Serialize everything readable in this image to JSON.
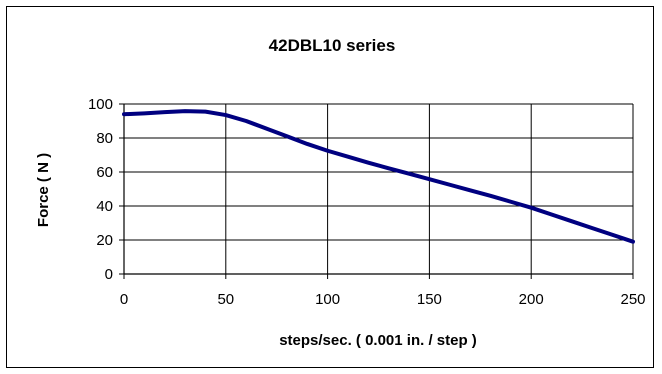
{
  "chart_data": {
    "type": "line",
    "title": "42DBL10 series",
    "xlabel": "steps/sec. ( 0.001 in. / step )",
    "ylabel": "Force ( N )",
    "xlim": [
      0,
      250
    ],
    "ylim": [
      0,
      100
    ],
    "x_ticks": [
      "0",
      "50",
      "100",
      "150",
      "200",
      "250"
    ],
    "y_ticks": [
      "0",
      "20",
      "40",
      "60",
      "80",
      "100"
    ],
    "grid": true,
    "legend": "none",
    "series": [
      {
        "color": "#000080",
        "x": [
          0,
          10,
          20,
          30,
          40,
          50,
          60,
          70,
          80,
          90,
          100,
          110,
          120,
          130,
          140,
          150,
          160,
          170,
          180,
          190,
          200,
          210,
          220,
          230,
          240,
          250
        ],
        "y": [
          94,
          94.5,
          95.2,
          95.8,
          95.5,
          93.5,
          90,
          85.5,
          81,
          76.5,
          72.5,
          69,
          65.5,
          62.2,
          59,
          55.8,
          52.5,
          49.2,
          46,
          42.5,
          39,
          35,
          31,
          27,
          23,
          19
        ]
      }
    ]
  }
}
